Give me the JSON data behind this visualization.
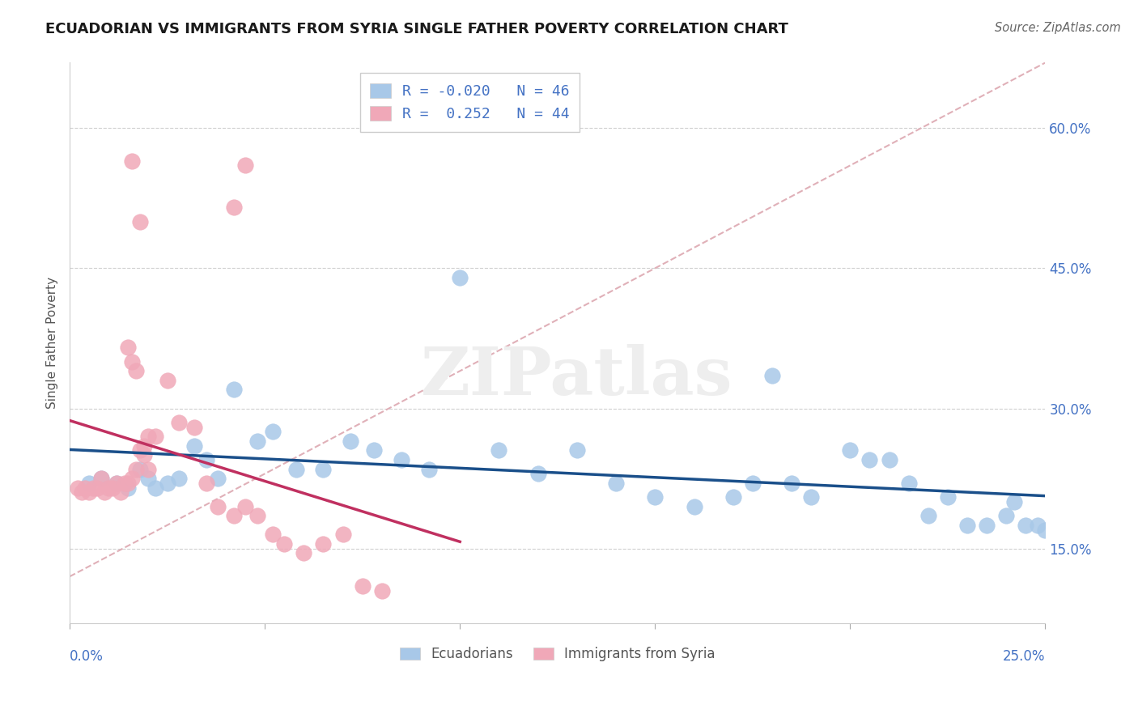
{
  "title": "ECUADORIAN VS IMMIGRANTS FROM SYRIA SINGLE FATHER POVERTY CORRELATION CHART",
  "source": "Source: ZipAtlas.com",
  "ylabel": "Single Father Poverty",
  "ytick_labels": [
    "15.0%",
    "30.0%",
    "45.0%",
    "60.0%"
  ],
  "ytick_values": [
    0.15,
    0.3,
    0.45,
    0.6
  ],
  "xlim": [
    0.0,
    0.25
  ],
  "ylim": [
    0.07,
    0.67
  ],
  "legend_blue_r": "R = -0.020",
  "legend_blue_n": "N = 46",
  "legend_pink_r": "R =  0.252",
  "legend_pink_n": "N = 44",
  "blue_color": "#a8c8e8",
  "pink_color": "#f0a8b8",
  "blue_line_color": "#1a4f8a",
  "pink_line_color": "#c03060",
  "diagonal_color": "#e0b0b8",
  "watermark": "ZIPatlas",
  "watermark_color": "#eeeeee",
  "blue_x": [
    0.005,
    0.008,
    0.012,
    0.015,
    0.018,
    0.02,
    0.022,
    0.025,
    0.028,
    0.032,
    0.035,
    0.038,
    0.042,
    0.048,
    0.052,
    0.058,
    0.065,
    0.072,
    0.078,
    0.085,
    0.092,
    0.1,
    0.11,
    0.12,
    0.13,
    0.14,
    0.15,
    0.16,
    0.17,
    0.175,
    0.18,
    0.185,
    0.19,
    0.2,
    0.205,
    0.21,
    0.215,
    0.22,
    0.225,
    0.23,
    0.235,
    0.24,
    0.242,
    0.245,
    0.248,
    0.25
  ],
  "blue_y": [
    0.22,
    0.225,
    0.22,
    0.215,
    0.235,
    0.225,
    0.215,
    0.22,
    0.225,
    0.26,
    0.245,
    0.225,
    0.32,
    0.265,
    0.275,
    0.235,
    0.235,
    0.265,
    0.255,
    0.245,
    0.235,
    0.44,
    0.255,
    0.23,
    0.255,
    0.22,
    0.205,
    0.195,
    0.205,
    0.22,
    0.335,
    0.22,
    0.205,
    0.255,
    0.245,
    0.245,
    0.22,
    0.185,
    0.205,
    0.175,
    0.175,
    0.185,
    0.2,
    0.175,
    0.175,
    0.17
  ],
  "pink_x": [
    0.002,
    0.003,
    0.004,
    0.005,
    0.006,
    0.007,
    0.008,
    0.009,
    0.01,
    0.011,
    0.012,
    0.013,
    0.014,
    0.015,
    0.016,
    0.017,
    0.018,
    0.019,
    0.02,
    0.022,
    0.025,
    0.028,
    0.032,
    0.035,
    0.038,
    0.042,
    0.045,
    0.048,
    0.052,
    0.055,
    0.06,
    0.065,
    0.07,
    0.075,
    0.08,
    0.042,
    0.045,
    0.016,
    0.018,
    0.015,
    0.016,
    0.017,
    0.019,
    0.02
  ],
  "pink_y": [
    0.215,
    0.21,
    0.215,
    0.21,
    0.215,
    0.215,
    0.225,
    0.21,
    0.215,
    0.215,
    0.22,
    0.21,
    0.22,
    0.22,
    0.225,
    0.235,
    0.255,
    0.25,
    0.235,
    0.27,
    0.33,
    0.285,
    0.28,
    0.22,
    0.195,
    0.185,
    0.195,
    0.185,
    0.165,
    0.155,
    0.145,
    0.155,
    0.165,
    0.11,
    0.105,
    0.515,
    0.56,
    0.565,
    0.5,
    0.365,
    0.35,
    0.34,
    0.26,
    0.27
  ]
}
